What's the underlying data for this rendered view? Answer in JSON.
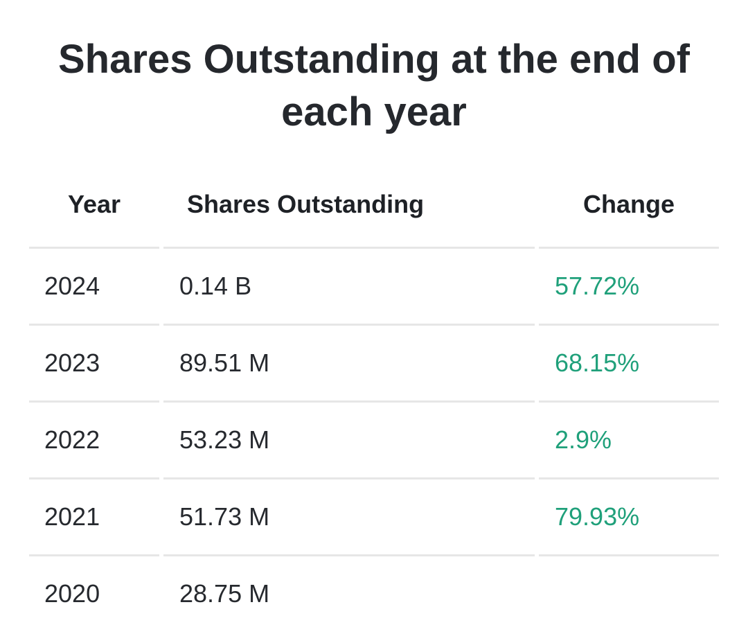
{
  "title": "Shares Outstanding at the end of each year",
  "table": {
    "headers": {
      "year": "Year",
      "shares": "Shares Outstanding",
      "change": "Change"
    },
    "rows": [
      {
        "year": "2024",
        "shares": "0.14 B",
        "change": "57.72%"
      },
      {
        "year": "2023",
        "shares": "89.51 M",
        "change": "68.15%"
      },
      {
        "year": "2022",
        "shares": "53.23 M",
        "change": "2.9%"
      },
      {
        "year": "2021",
        "shares": "51.73 M",
        "change": "79.93%"
      },
      {
        "year": "2020",
        "shares": "28.75 M",
        "change": ""
      }
    ]
  },
  "colors": {
    "positive_change": "#1fa07a",
    "text": "#23262b",
    "rule": "#e6e6e6"
  }
}
